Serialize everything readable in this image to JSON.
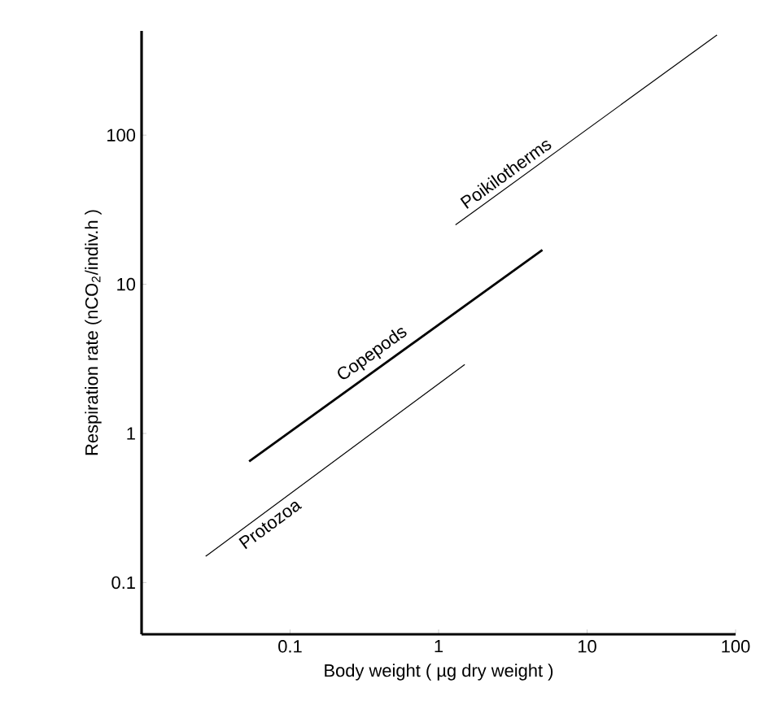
{
  "chart_data": {
    "type": "line",
    "xlabel": "Body weight  ( µg dry weight )",
    "ylabel": "Respiration rate (nCO$_{2}$/indiv.h )",
    "log": "xy",
    "xlim": [
      0.01,
      100
    ],
    "ylim": [
      0.045,
      500
    ],
    "xticks": [
      0.1,
      1,
      10,
      100
    ],
    "yticks": [
      0.1,
      1,
      10,
      100
    ],
    "marker": "none",
    "line_style": "solid",
    "series": [
      {
        "name": "Protozoa",
        "color": "#000000",
        "x": [
          0.027,
          1.5
        ],
        "values": [
          0.15,
          2.9
        ]
      },
      {
        "name": "Copepods",
        "color": "#000000",
        "x": [
          0.053,
          5.0
        ],
        "values": [
          0.65,
          17
        ]
      },
      {
        "name": "Poikilotherms",
        "color": "#000000",
        "x": [
          1.3,
          75
        ],
        "values": [
          25,
          470
        ]
      }
    ]
  }
}
